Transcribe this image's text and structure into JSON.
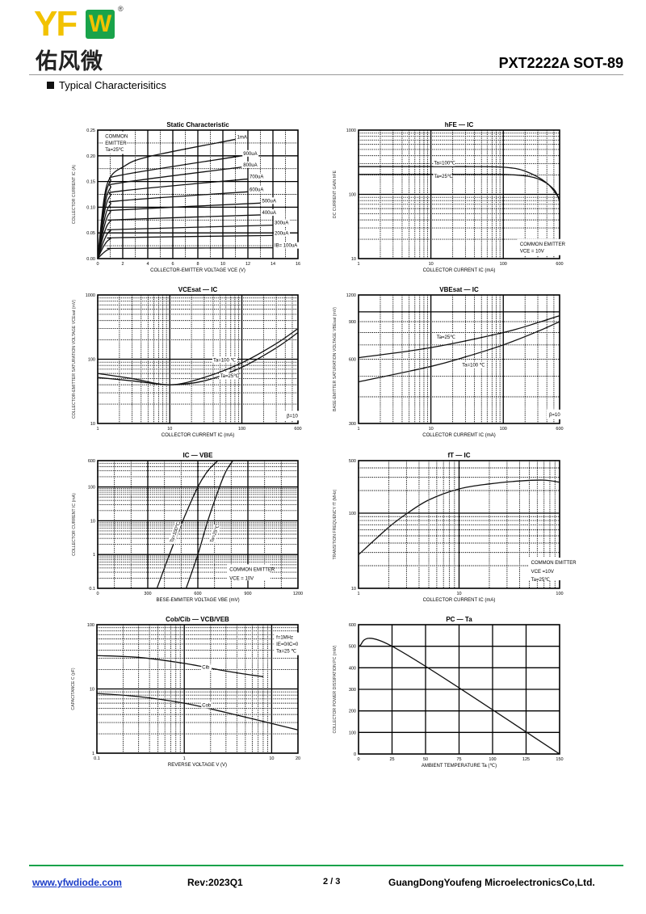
{
  "header": {
    "logo_text": "YFW",
    "logo_cn": "佑风微",
    "logo_registered": "®",
    "title": "PXT2222A SOT-89",
    "section": "Typical Characterisitics"
  },
  "footer": {
    "website": "www.yfwdiode.com",
    "revision": "Rev:2023Q1",
    "page": "2 / 3",
    "company": "GuangDongYoufeng MicroelectronicsCo,Ltd."
  },
  "chart_data": [
    {
      "type": "line",
      "title": "Static Characteristic",
      "xlabel": "COLLECTOR-EMITTER VOLTAGE  VCE  (V)",
      "ylabel": "COLLECTOR CURRENT  IC  (A)",
      "xscale": "linear",
      "yscale": "linear",
      "xlim": [
        0,
        16
      ],
      "ylim": [
        0,
        0.25
      ],
      "xticks": [
        "0",
        "2",
        "4",
        "6",
        "8",
        "10",
        "12",
        "14",
        "16"
      ],
      "yticks": [
        "0.00",
        "0.05",
        "0.10",
        "0.15",
        "0.20",
        "0.25"
      ],
      "annotations": [
        "COMMON",
        "EMITTER",
        "Ta=25℃"
      ],
      "series": [
        {
          "name": "IB= 100uA",
          "points": [
            [
              0,
              0
            ],
            [
              0.5,
              0.012
            ],
            [
              1,
              0.019
            ],
            [
              2,
              0.02
            ],
            [
              14,
              0.021
            ]
          ]
        },
        {
          "name": "200uA",
          "points": [
            [
              0,
              0
            ],
            [
              0.5,
              0.025
            ],
            [
              1,
              0.038
            ],
            [
              2,
              0.041
            ],
            [
              14,
              0.045
            ]
          ]
        },
        {
          "name": "300uA",
          "points": [
            [
              0,
              0
            ],
            [
              0.5,
              0.035
            ],
            [
              1,
              0.054
            ],
            [
              2,
              0.057
            ],
            [
              14,
              0.065
            ]
          ]
        },
        {
          "name": "400uA",
          "points": [
            [
              0,
              0
            ],
            [
              0.5,
              0.048
            ],
            [
              1,
              0.072
            ],
            [
              2,
              0.076
            ],
            [
              13,
              0.085
            ]
          ]
        },
        {
          "name": "500uA",
          "points": [
            [
              0,
              0
            ],
            [
              0.5,
              0.06
            ],
            [
              1,
              0.09
            ],
            [
              2,
              0.095
            ],
            [
              13,
              0.108
            ]
          ]
        },
        {
          "name": "600uA",
          "points": [
            [
              0,
              0
            ],
            [
              0.5,
              0.072
            ],
            [
              1,
              0.105
            ],
            [
              2,
              0.113
            ],
            [
              12,
              0.13
            ]
          ]
        },
        {
          "name": "700uA",
          "points": [
            [
              0,
              0
            ],
            [
              0.5,
              0.085
            ],
            [
              1,
              0.122
            ],
            [
              2,
              0.132
            ],
            [
              12,
              0.155
            ]
          ]
        },
        {
          "name": "800uA",
          "points": [
            [
              0,
              0
            ],
            [
              0.5,
              0.095
            ],
            [
              1,
              0.137
            ],
            [
              2,
              0.148
            ],
            [
              11.5,
              0.178
            ]
          ]
        },
        {
          "name": "900uA",
          "points": [
            [
              0,
              0
            ],
            [
              0.5,
              0.105
            ],
            [
              1,
              0.15
            ],
            [
              2,
              0.163
            ],
            [
              11.5,
              0.2
            ]
          ]
        },
        {
          "name": "1mA",
          "points": [
            [
              0,
              0
            ],
            [
              0.5,
              0.115
            ],
            [
              1,
              0.158
            ],
            [
              2,
              0.178
            ],
            [
              4,
              0.198
            ],
            [
              11,
              0.232
            ]
          ]
        }
      ]
    },
    {
      "type": "line",
      "title": "hFE  —  IC",
      "xlabel": "COLLECTOR CURRENT  IC  (mA)",
      "ylabel": "DC CURRENT GAIN  hFE",
      "xscale": "log",
      "yscale": "log",
      "xlim": [
        1,
        600
      ],
      "ylim": [
        10,
        1000
      ],
      "xticks": [
        "1",
        "10",
        "100",
        "600"
      ],
      "yticks": [
        "10",
        "100",
        "1000"
      ],
      "annotations": [
        "COMMON EMITTER",
        "VCE = 10V"
      ],
      "series": [
        {
          "name": "Ta=100℃",
          "points": [
            [
              1,
              270
            ],
            [
              30,
              270
            ],
            [
              100,
              265
            ],
            [
              200,
              230
            ],
            [
              400,
              150
            ],
            [
              600,
              85
            ]
          ]
        },
        {
          "name": "Ta=25℃",
          "points": [
            [
              1,
              205
            ],
            [
              50,
              205
            ],
            [
              150,
              200
            ],
            [
              300,
              175
            ],
            [
              500,
              120
            ],
            [
              600,
              78
            ]
          ]
        }
      ]
    },
    {
      "type": "line",
      "title": "VCEsat  —  IC",
      "xlabel": "COLLECTOR CURREMT  IC  (mA)",
      "ylabel": "COLLECTOR-EMITTER SATURATION VOLTAGE  VCEsat  (mV)",
      "xscale": "log",
      "yscale": "log",
      "xlim": [
        1,
        600
      ],
      "ylim": [
        10,
        1000
      ],
      "xticks": [
        "1",
        "10",
        "100",
        "600"
      ],
      "yticks": [
        "10",
        "100",
        "1000"
      ],
      "annotations": [
        "β=10"
      ],
      "series": [
        {
          "name": "Ta=100 ℃",
          "points": [
            [
              1,
              60
            ],
            [
              3,
              50
            ],
            [
              10,
              40
            ],
            [
              30,
              52
            ],
            [
              100,
              88
            ],
            [
              300,
              175
            ],
            [
              600,
              300
            ]
          ]
        },
        {
          "name": "Ta=25℃",
          "points": [
            [
              1,
              52
            ],
            [
              3,
              46
            ],
            [
              10,
              40
            ],
            [
              30,
              46
            ],
            [
              100,
              75
            ],
            [
              300,
              150
            ],
            [
              600,
              260
            ]
          ]
        }
      ]
    },
    {
      "type": "line",
      "title": "VBEsat  —  IC",
      "xlabel": "COLLECTOR CURREMT  IC  (mA)",
      "ylabel": "BASE-EMITTER SATURATION VOLTAGE  VBEsat  (mV)",
      "xscale": "log",
      "yscale": "log",
      "xlim": [
        1,
        600
      ],
      "ylim": [
        300,
        1200
      ],
      "xticks": [
        "1",
        "10",
        "100",
        "600"
      ],
      "yticks": [
        "300",
        "600",
        "900",
        "1200"
      ],
      "annotations": [
        "β=10"
      ],
      "series": [
        {
          "name": "Ta=25℃",
          "points": [
            [
              1,
              610
            ],
            [
              10,
              680
            ],
            [
              100,
              800
            ],
            [
              300,
              890
            ],
            [
              600,
              960
            ]
          ]
        },
        {
          "name": "Ta=100 ℃",
          "points": [
            [
              1,
              470
            ],
            [
              10,
              555
            ],
            [
              30,
              615
            ],
            [
              100,
              700
            ],
            [
              300,
              810
            ],
            [
              600,
              900
            ]
          ]
        }
      ]
    },
    {
      "type": "line",
      "title": "IC  —  VBE",
      "xlabel": "BESE-EMMITER VOLTAGE  VBE  (mV)",
      "ylabel": "COLLECTOR CURRENT  IC  (mA)",
      "xscale": "linear",
      "yscale": "log",
      "xlim": [
        0,
        1200
      ],
      "ylim": [
        0.1,
        600
      ],
      "xticks": [
        "0",
        "300",
        "600",
        "900",
        "1200"
      ],
      "yticks": [
        "0.1",
        "1",
        "10",
        "100",
        "600"
      ],
      "annotations": [
        "COMMON EMITTER",
        "VCE = 10V"
      ],
      "series": [
        {
          "name": "Ta=100℃",
          "points": [
            [
              355,
              0.1
            ],
            [
              430,
              1
            ],
            [
              510,
              10
            ],
            [
              600,
              100
            ],
            [
              660,
              300
            ],
            [
              720,
              600
            ]
          ]
        },
        {
          "name": "Ta=25℃",
          "points": [
            [
              530,
              0.1
            ],
            [
              600,
              1
            ],
            [
              660,
              10
            ],
            [
              730,
              100
            ],
            [
              770,
              300
            ],
            [
              810,
              600
            ]
          ]
        }
      ]
    },
    {
      "type": "line",
      "title": "fT  —  IC",
      "xlabel": "COLLECTOR CURRENT  IC  (mA)",
      "ylabel": "TRANSITION FREQUENCY  fT  (MHz)",
      "xscale": "log",
      "yscale": "log",
      "xlim": [
        1,
        100
      ],
      "ylim": [
        10,
        500
      ],
      "xticks": [
        "1",
        "10",
        "100"
      ],
      "yticks": [
        "10",
        "100",
        "500"
      ],
      "annotations": [
        "COMMON EMITTER",
        "VCE =10V",
        "Ta=25℃"
      ],
      "series": [
        {
          "name": "fT",
          "points": [
            [
              1,
              28
            ],
            [
              2,
              65
            ],
            [
              3,
              98
            ],
            [
              5,
              150
            ],
            [
              10,
              210
            ],
            [
              20,
              245
            ],
            [
              40,
              268
            ],
            [
              70,
              275
            ],
            [
              100,
              258
            ]
          ]
        }
      ]
    },
    {
      "type": "line",
      "title": "Cob/Cib  —  VCB/VEB",
      "xlabel": "REVERSE VOLTAGE  V  (V)",
      "ylabel": "CAPACITANCE  C  (pF)",
      "xscale": "log",
      "yscale": "log",
      "xlim": [
        0.1,
        20
      ],
      "ylim": [
        1,
        100
      ],
      "xticks": [
        "0.1",
        "1",
        "10",
        "20"
      ],
      "yticks": [
        "1",
        "10",
        "100"
      ],
      "annotations": [
        "f=1MHz",
        "IE=0/IC=0",
        "Ta=25 ℃"
      ],
      "series": [
        {
          "name": "Cib",
          "points": [
            [
              0.1,
              33
            ],
            [
              0.3,
              31
            ],
            [
              1,
              25
            ],
            [
              3,
              19
            ],
            [
              8,
              15.5
            ]
          ]
        },
        {
          "name": "Cob",
          "points": [
            [
              0.1,
              8.5
            ],
            [
              0.3,
              7.6
            ],
            [
              1,
              6
            ],
            [
              3,
              4.3
            ],
            [
              10,
              2.9
            ],
            [
              20,
              2.3
            ]
          ]
        }
      ]
    },
    {
      "type": "line",
      "title": "PC  —  Ta",
      "xlabel": "AMBIENT TEMPERATURE  Ta  (℃)",
      "ylabel": "COLLECTOR POWER DISSIPATION  PC  (mW)",
      "xscale": "linear",
      "yscale": "linear",
      "xlim": [
        0,
        150
      ],
      "ylim": [
        0,
        600
      ],
      "xticks": [
        "0",
        "25",
        "50",
        "75",
        "100",
        "125",
        "150"
      ],
      "yticks": [
        "0",
        "100",
        "200",
        "300",
        "400",
        "500",
        "600"
      ],
      "annotations": [],
      "series": [
        {
          "name": "PC",
          "points": [
            [
              0,
              500
            ],
            [
              25,
              500
            ],
            [
              150,
              0
            ]
          ]
        }
      ]
    }
  ]
}
